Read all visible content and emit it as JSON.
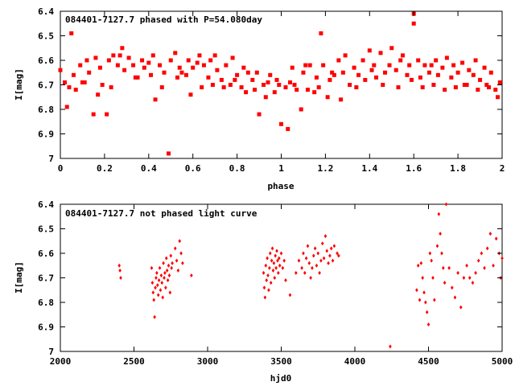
{
  "chart_data": [
    {
      "type": "scatter",
      "title": "084401-7127.7 phased with P=54.080day",
      "xlabel": "phase",
      "ylabel": "I[mag]",
      "xlim": [
        0,
        2
      ],
      "ylim": [
        6.4,
        7
      ],
      "y_inverted": true,
      "grid": false,
      "marker_color": "#ff0000",
      "marker": "filled-square",
      "xticks": [
        "0",
        "0.2",
        "0.4",
        "0.6",
        "0.8",
        "1",
        "1.2",
        "1.4",
        "1.6",
        "1.8",
        "2"
      ],
      "yticks": [
        "6.4",
        "6.5",
        "6.6",
        "6.7",
        "6.8",
        "6.9",
        "7"
      ],
      "series": [
        {
          "x": [
            0.0,
            0.02,
            0.03,
            0.05,
            0.06,
            0.07,
            0.09,
            0.1,
            0.12,
            0.13,
            0.15,
            0.16,
            0.18,
            0.19,
            0.21,
            0.22,
            0.24,
            0.26,
            0.28,
            0.29,
            0.31,
            0.33,
            0.35,
            0.37,
            0.38,
            0.4,
            0.42,
            0.43,
            0.45,
            0.47,
            0.49,
            0.5,
            0.52,
            0.54,
            0.55,
            0.57,
            0.58,
            0.6,
            0.62,
            0.63,
            0.65,
            0.67,
            0.68,
            0.7,
            0.71,
            0.73,
            0.75,
            0.77,
            0.78,
            0.8,
            0.82,
            0.83,
            0.85,
            0.87,
            0.88,
            0.9,
            0.92,
            0.93,
            0.95,
            0.97,
            0.98,
            1.0,
            1.02,
            1.03,
            1.05,
            1.06,
            1.07,
            1.09,
            1.1,
            1.12,
            1.13,
            1.15,
            1.16,
            1.18,
            1.19,
            1.21,
            1.22,
            1.24,
            1.26,
            1.28,
            1.29,
            1.31,
            1.33,
            1.35,
            1.37,
            1.38,
            1.4,
            1.42,
            1.43,
            1.45,
            1.47,
            1.49,
            1.5,
            1.52,
            1.54,
            1.55,
            1.57,
            1.58,
            1.6,
            1.6,
            1.62,
            1.63,
            1.65,
            1.67,
            1.68,
            1.7,
            1.71,
            1.73,
            1.75,
            1.77,
            1.78,
            1.8,
            1.82,
            1.83,
            1.85,
            1.87,
            1.88,
            1.9,
            1.92,
            1.93,
            1.95,
            1.97,
            1.98,
            1.99,
            0.04,
            0.11,
            0.17,
            0.23,
            0.27,
            0.34,
            0.41,
            0.46,
            0.53,
            0.59,
            0.64,
            0.69,
            0.74,
            0.79,
            0.84,
            0.89,
            0.94,
            0.99,
            1.04,
            1.11,
            1.17,
            1.23,
            1.27,
            1.34,
            1.41,
            1.46,
            1.53,
            1.59,
            1.64,
            1.69,
            1.74,
            1.79,
            1.84,
            1.89,
            1.94
          ],
          "y": [
            6.64,
            6.69,
            6.79,
            6.49,
            6.66,
            6.72,
            6.62,
            6.69,
            6.6,
            6.65,
            6.82,
            6.59,
            6.63,
            6.7,
            6.82,
            6.6,
            6.58,
            6.62,
            6.55,
            6.64,
            6.59,
            6.62,
            6.67,
            6.6,
            6.63,
            6.61,
            6.58,
            6.76,
            6.62,
            6.65,
            6.98,
            6.6,
            6.57,
            6.63,
            6.65,
            6.66,
            6.6,
            6.63,
            6.61,
            6.58,
            6.62,
            6.67,
            6.6,
            6.58,
            6.64,
            6.68,
            6.62,
            6.7,
            6.59,
            6.66,
            6.71,
            6.63,
            6.65,
            6.68,
            6.72,
            6.82,
            6.7,
            6.75,
            6.66,
            6.73,
            6.68,
            6.86,
            6.71,
            6.88,
            6.63,
            6.7,
            6.72,
            6.8,
            6.65,
            6.72,
            6.62,
            6.73,
            6.67,
            6.49,
            6.62,
            6.75,
            6.68,
            6.66,
            6.6,
            6.65,
            6.58,
            6.7,
            6.63,
            6.66,
            6.6,
            6.68,
            6.56,
            6.62,
            6.67,
            6.57,
            6.65,
            6.62,
            6.55,
            6.64,
            6.6,
            6.58,
            6.66,
            6.62,
            6.41,
            6.45,
            6.6,
            6.67,
            6.62,
            6.65,
            6.62,
            6.6,
            6.66,
            6.63,
            6.59,
            6.67,
            6.62,
            6.65,
            6.61,
            6.7,
            6.64,
            6.66,
            6.6,
            6.68,
            6.63,
            6.7,
            6.65,
            6.72,
            6.75,
            6.69,
            6.71,
            6.69,
            6.74,
            6.71,
            6.58,
            6.67,
            6.66,
            6.71,
            6.67,
            6.74,
            6.71,
            6.7,
            6.71,
            6.68,
            6.73,
            6.65,
            6.69,
            6.7,
            6.69,
            6.62,
            6.71,
            6.65,
            6.76,
            6.71,
            6.64,
            6.7,
            6.71,
            6.68,
            6.71,
            6.7,
            6.72,
            6.71,
            6.7,
            6.72,
            6.71
          ]
        }
      ]
    },
    {
      "type": "scatter",
      "title": "084401-7127.7 not phased light curve",
      "xlabel": "hjd0",
      "ylabel": "I[mag]",
      "xlim": [
        2000,
        5000
      ],
      "ylim": [
        6.4,
        7
      ],
      "y_inverted": true,
      "grid": false,
      "marker_color": "#ff0000",
      "marker": "filled-diamond",
      "xticks": [
        "2000",
        "2500",
        "3000",
        "3500",
        "4000",
        "4500",
        "5000"
      ],
      "yticks": [
        "6.4",
        "6.5",
        "6.6",
        "6.7",
        "6.8",
        "6.9",
        "7"
      ],
      "series": [
        {
          "x": [
            2400,
            2405,
            2410,
            2620,
            2625,
            2630,
            2635,
            2640,
            2645,
            2650,
            2655,
            2660,
            2665,
            2670,
            2675,
            2680,
            2685,
            2690,
            2695,
            2700,
            2705,
            2710,
            2715,
            2720,
            2725,
            2730,
            2735,
            2740,
            2745,
            2750,
            2755,
            2760,
            2780,
            2790,
            2800,
            2810,
            2820,
            2830,
            2890,
            3380,
            3385,
            3390,
            3395,
            3400,
            3405,
            3410,
            3415,
            3420,
            3425,
            3430,
            3435,
            3440,
            3445,
            3450,
            3455,
            3460,
            3465,
            3470,
            3475,
            3480,
            3485,
            3490,
            3500,
            3510,
            3520,
            3530,
            3560,
            3600,
            3620,
            3640,
            3650,
            3660,
            3670,
            3680,
            3690,
            3700,
            3710,
            3720,
            3730,
            3740,
            3750,
            3760,
            3770,
            3780,
            3790,
            3800,
            3810,
            3820,
            3830,
            3840,
            3850,
            3860,
            3880,
            3890,
            4240,
            4420,
            4430,
            4440,
            4450,
            4460,
            4470,
            4480,
            4490,
            4500,
            4510,
            4520,
            4530,
            4540,
            4560,
            4570,
            4580,
            4590,
            4600,
            4610,
            4620,
            4640,
            4660,
            4680,
            4700,
            4720,
            4740,
            4760,
            4780,
            4800,
            4820,
            4840,
            4860,
            4880,
            4900,
            4920,
            4940,
            4960,
            4980,
            4990,
            5000
          ],
          "y": [
            6.65,
            6.67,
            6.7,
            6.66,
            6.72,
            6.76,
            6.79,
            6.86,
            6.74,
            6.7,
            6.68,
            6.73,
            6.77,
            6.71,
            6.66,
            6.75,
            6.69,
            6.72,
            6.78,
            6.64,
            6.7,
            6.68,
            6.74,
            6.62,
            6.67,
            6.71,
            6.65,
            6.69,
            6.76,
            6.61,
            6.66,
            6.64,
            6.58,
            6.63,
            6.67,
            6.55,
            6.6,
            6.64,
            6.69,
            6.68,
            6.74,
            6.78,
            6.65,
            6.71,
            6.62,
            6.69,
            6.75,
            6.66,
            6.6,
            6.72,
            6.63,
            6.58,
            6.67,
            6.64,
            6.7,
            6.61,
            6.66,
            6.59,
            6.63,
            6.68,
            6.62,
            6.65,
            6.6,
            6.66,
            6.63,
            6.71,
            6.77,
            6.68,
            6.63,
            6.66,
            6.6,
            6.68,
            6.62,
            6.57,
            6.64,
            6.7,
            6.66,
            6.61,
            6.58,
            6.65,
            6.6,
            6.68,
            6.63,
            6.56,
            6.62,
            6.53,
            6.59,
            6.64,
            6.61,
            6.58,
            6.63,
            6.57,
            6.6,
            6.61,
            6.98,
            6.75,
            6.65,
            6.79,
            6.64,
            6.7,
            6.76,
            6.8,
            6.84,
            6.89,
            6.6,
            6.63,
            6.7,
            6.79,
            6.57,
            6.44,
            6.52,
            6.6,
            6.66,
            6.72,
            6.4,
            6.66,
            6.74,
            6.78,
            6.68,
            6.82,
            6.7,
            6.65,
            6.7,
            6.72,
            6.68,
            6.63,
            6.6,
            6.66,
            6.58,
            6.52,
            6.65,
            6.54,
            6.6,
            6.7,
            6.62
          ]
        }
      ]
    }
  ]
}
